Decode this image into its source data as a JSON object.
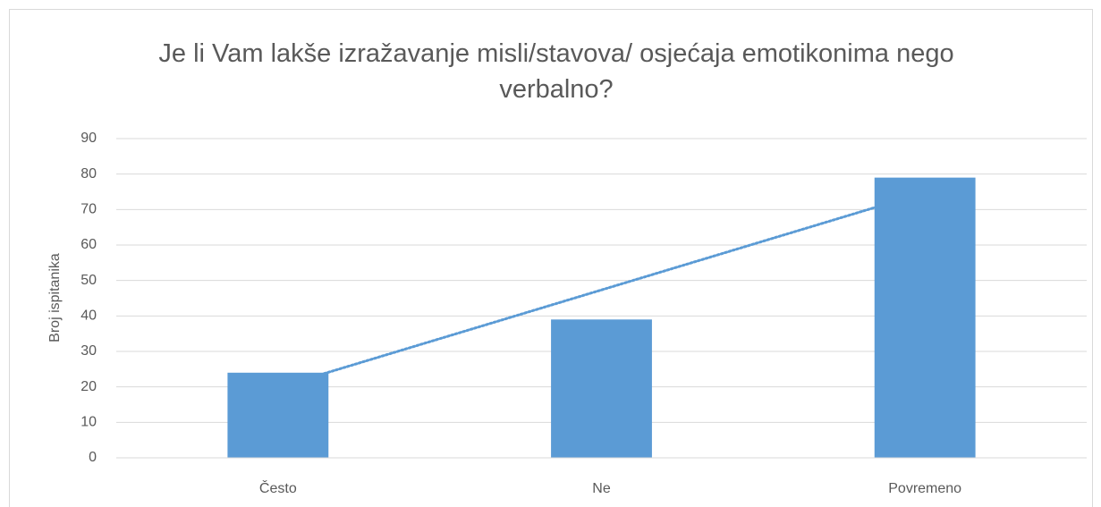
{
  "chart_data": {
    "type": "bar",
    "title": "Je li Vam lakše izražavanje misli/stavova/ osjećaja emotikonima nego verbalno?",
    "y_label": "Broj ispitanika",
    "categories": [
      "Često",
      "Ne",
      "Povremeno"
    ],
    "values": [
      24,
      39,
      79
    ],
    "color": "#5b9bd5",
    "ylim": [
      0,
      90
    ],
    "yticks": [
      0,
      10,
      20,
      30,
      40,
      50,
      60,
      70,
      80,
      90
    ],
    "grid": true,
    "trendline": {
      "type": "linear",
      "color": "#5b9bd5"
    }
  }
}
